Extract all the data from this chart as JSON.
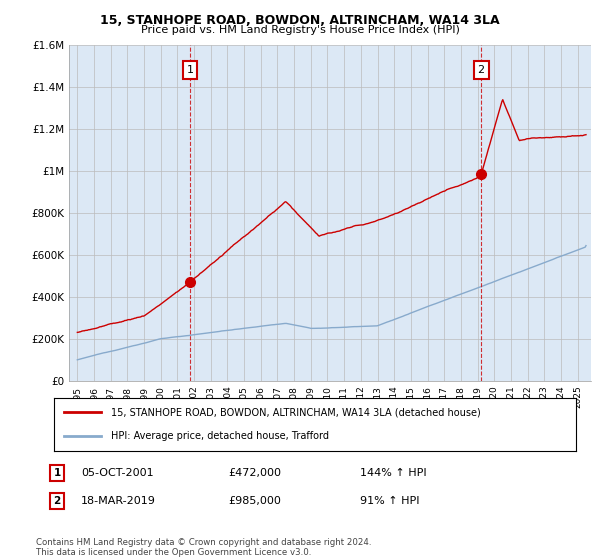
{
  "title": "15, STANHOPE ROAD, BOWDON, ALTRINCHAM, WA14 3LA",
  "subtitle": "Price paid vs. HM Land Registry's House Price Index (HPI)",
  "legend_label_red": "15, STANHOPE ROAD, BOWDON, ALTRINCHAM, WA14 3LA (detached house)",
  "legend_label_blue": "HPI: Average price, detached house, Trafford",
  "annotation1_date": "05-OCT-2001",
  "annotation1_price": "£472,000",
  "annotation1_hpi": "144% ↑ HPI",
  "annotation2_date": "18-MAR-2019",
  "annotation2_price": "£985,000",
  "annotation2_hpi": "91% ↑ HPI",
  "footnote": "Contains HM Land Registry data © Crown copyright and database right 2024.\nThis data is licensed under the Open Government Licence v3.0.",
  "ylim": [
    0,
    1600000
  ],
  "yticks": [
    0,
    200000,
    400000,
    600000,
    800000,
    1000000,
    1200000,
    1400000,
    1600000
  ],
  "ytick_labels": [
    "£0",
    "£200K",
    "£400K",
    "£600K",
    "£800K",
    "£1M",
    "£1.2M",
    "£1.4M",
    "£1.6M"
  ],
  "sale1_year": 2001.75,
  "sale1_price": 472000,
  "sale2_year": 2019.21,
  "sale2_price": 985000,
  "red_color": "#cc0000",
  "blue_color": "#88aacc",
  "vline_color": "#cc0000",
  "bg_color": "#ffffff",
  "chart_bg_color": "#dce8f5",
  "grid_color": "#bbbbbb"
}
